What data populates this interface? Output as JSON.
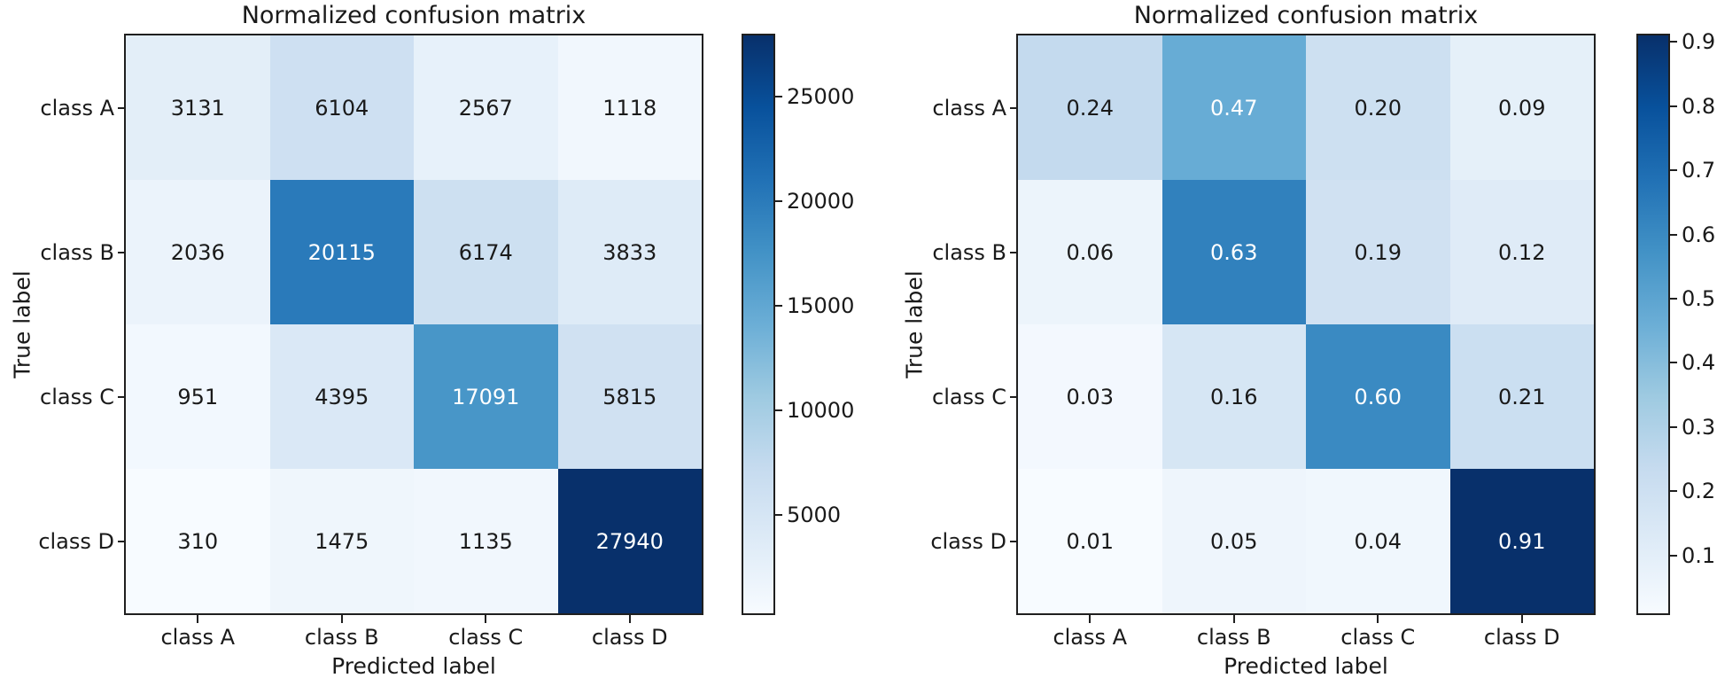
{
  "chart_data": [
    {
      "type": "heatmap",
      "title": "Normalized confusion matrix",
      "xlabel": "Predicted label",
      "ylabel": "True label",
      "x_categories": [
        "class A",
        "class B",
        "class C",
        "class D"
      ],
      "y_categories": [
        "class A",
        "class B",
        "class C",
        "class D"
      ],
      "values": [
        [
          3131,
          6104,
          2567,
          1118
        ],
        [
          2036,
          20115,
          6174,
          3833
        ],
        [
          951,
          4395,
          17091,
          5815
        ],
        [
          310,
          1475,
          1135,
          27940
        ]
      ],
      "cell_labels": [
        [
          "3131",
          "6104",
          "2567",
          "1118"
        ],
        [
          "2036",
          "20115",
          "6174",
          "3833"
        ],
        [
          "951",
          "4395",
          "17091",
          "5815"
        ],
        [
          "310",
          "1475",
          "1135",
          "27940"
        ]
      ],
      "colormap": "Blues",
      "vmin": 310,
      "vmax": 27940,
      "colorbar_position": "right",
      "colorbar_ticks": [
        {
          "label": "25000",
          "value": 25000
        },
        {
          "label": "20000",
          "value": 20000
        },
        {
          "label": "15000",
          "value": 15000
        },
        {
          "label": "10000",
          "value": 10000
        },
        {
          "label": "5000",
          "value": 5000
        }
      ]
    },
    {
      "type": "heatmap",
      "title": "Normalized confusion matrix",
      "xlabel": "Predicted label",
      "ylabel": "True label",
      "x_categories": [
        "class A",
        "class B",
        "class C",
        "class D"
      ],
      "y_categories": [
        "class A",
        "class B",
        "class C",
        "class D"
      ],
      "values": [
        [
          0.24,
          0.47,
          0.2,
          0.09
        ],
        [
          0.06,
          0.63,
          0.19,
          0.12
        ],
        [
          0.03,
          0.16,
          0.6,
          0.21
        ],
        [
          0.01,
          0.05,
          0.04,
          0.91
        ]
      ],
      "cell_labels": [
        [
          "0.24",
          "0.47",
          "0.20",
          "0.09"
        ],
        [
          "0.06",
          "0.63",
          "0.19",
          "0.12"
        ],
        [
          "0.03",
          "0.16",
          "0.60",
          "0.21"
        ],
        [
          "0.01",
          "0.05",
          "0.04",
          "0.91"
        ]
      ],
      "colormap": "Blues",
      "vmin": 0.01,
      "vmax": 0.91,
      "colorbar_position": "right",
      "colorbar_ticks": [
        {
          "label": "0.9",
          "value": 0.9
        },
        {
          "label": "0.8",
          "value": 0.8
        },
        {
          "label": "0.7",
          "value": 0.7
        },
        {
          "label": "0.6",
          "value": 0.6
        },
        {
          "label": "0.5",
          "value": 0.5
        },
        {
          "label": "0.4",
          "value": 0.4
        },
        {
          "label": "0.3",
          "value": 0.3
        },
        {
          "label": "0.2",
          "value": 0.2
        },
        {
          "label": "0.1",
          "value": 0.1
        }
      ]
    }
  ]
}
